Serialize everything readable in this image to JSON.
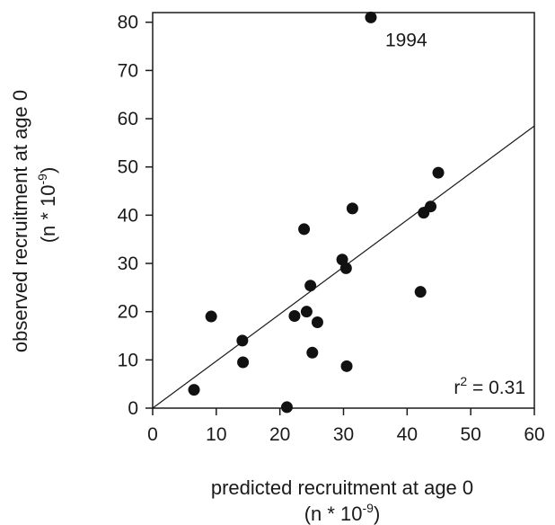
{
  "chart_data": {
    "type": "scatter",
    "xlabel": "predicted recruitment at age 0",
    "xlabel_unit_base": "(n * 10",
    "xlabel_unit_exp": "-9",
    "xlabel_unit_end": ")",
    "ylabel": "observed recruitment at age 0",
    "ylabel_unit_base": "(n * 10",
    "ylabel_unit_exp": "-9",
    "ylabel_unit_end": ")",
    "xlim": [
      0,
      60
    ],
    "ylim": [
      0,
      82
    ],
    "x_ticks": [
      0,
      10,
      20,
      30,
      40,
      50,
      60
    ],
    "y_ticks": [
      0,
      10,
      20,
      30,
      40,
      50,
      60,
      70,
      80
    ],
    "grid": false,
    "points": [
      {
        "x": 6.5,
        "y": 3.8
      },
      {
        "x": 9.2,
        "y": 19
      },
      {
        "x": 14.1,
        "y": 14
      },
      {
        "x": 14.2,
        "y": 9.5
      },
      {
        "x": 21.1,
        "y": 0.2
      },
      {
        "x": 22.3,
        "y": 19.1
      },
      {
        "x": 23.8,
        "y": 37.1
      },
      {
        "x": 24.2,
        "y": 20
      },
      {
        "x": 24.8,
        "y": 25.4
      },
      {
        "x": 25.1,
        "y": 11.5
      },
      {
        "x": 25.9,
        "y": 17.8
      },
      {
        "x": 29.8,
        "y": 30.8
      },
      {
        "x": 30.4,
        "y": 29
      },
      {
        "x": 30.5,
        "y": 8.7
      },
      {
        "x": 31.4,
        "y": 41.4
      },
      {
        "x": 34.3,
        "y": 81,
        "label": "1994"
      },
      {
        "x": 42.1,
        "y": 24.1
      },
      {
        "x": 42.6,
        "y": 40.5
      },
      {
        "x": 43.7,
        "y": 41.8
      },
      {
        "x": 44.9,
        "y": 48.8
      }
    ],
    "fit_line": {
      "x": [
        0,
        60
      ],
      "y": [
        0,
        58.5
      ]
    },
    "r2_label_base": "r",
    "r2_label_exp": "2",
    "r2_label_value": " = 0.31"
  }
}
